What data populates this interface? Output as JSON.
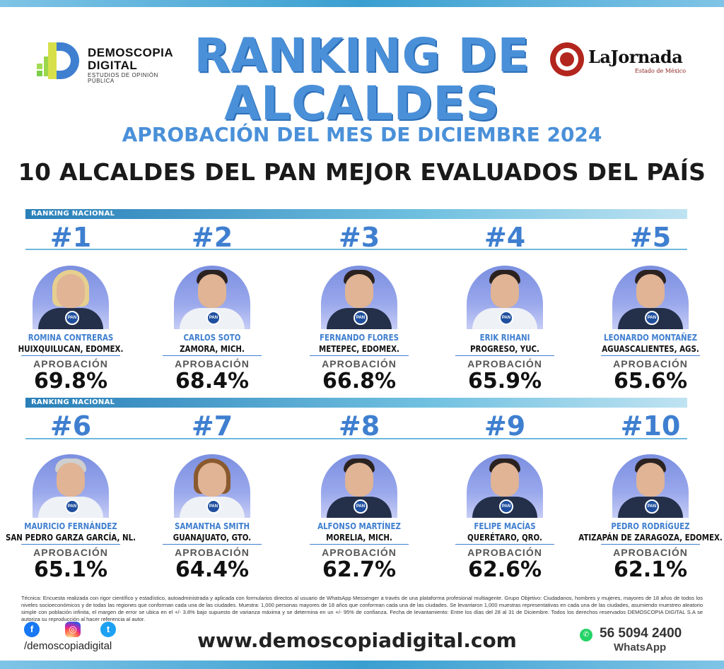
{
  "header": {
    "brand_left": {
      "line1": "DEMOSCOPIA",
      "line2": "DIGITAL",
      "line3": "ESTUDIOS DE OPINIÓN PÚBLICA"
    },
    "brand_right": {
      "name": "LaJornada",
      "sub": "Estado de México"
    },
    "title_line1": "RANKING DE",
    "title_line2": "ALCALDES",
    "subtitle": "APROBACIÓN DEL MES DE DICIEMBRE 2024",
    "headline": "10 ALCALDES DEL PAN MEJOR EVALUADOS DEL PAÍS"
  },
  "section_label": "RANKING NACIONAL",
  "approval_label": "APROBACIÓN",
  "party_badge": "PAN",
  "mayors": [
    {
      "rank": "#1",
      "name": "ROMINA CONTRERAS",
      "city": "HUIXQUILUCAN, EDOMEX.",
      "approval": "69.8%"
    },
    {
      "rank": "#2",
      "name": "CARLOS SOTO",
      "city": "ZAMORA, MICH.",
      "approval": "68.4%"
    },
    {
      "rank": "#3",
      "name": "FERNANDO FLORES",
      "city": "METEPEC, EDOMEX.",
      "approval": "66.8%"
    },
    {
      "rank": "#4",
      "name": "ERIK RIHANI",
      "city": "PROGRESO, YUC.",
      "approval": "65.9%"
    },
    {
      "rank": "#5",
      "name": "LEONARDO MONTAÑEZ",
      "city": "AGUASCALIENTES, AGS.",
      "approval": "65.6%"
    },
    {
      "rank": "#6",
      "name": "MAURICIO FERNÁNDEZ",
      "city": "SAN PEDRO GARZA GARCÍA, NL.",
      "approval": "65.1%"
    },
    {
      "rank": "#7",
      "name": "SAMANTHA SMITH",
      "city": "GUANAJUATO, GTO.",
      "approval": "64.4%"
    },
    {
      "rank": "#8",
      "name": "ALFONSO MARTÍNEZ",
      "city": "MORELIA, MICH.",
      "approval": "62.7%"
    },
    {
      "rank": "#9",
      "name": "FELIPE MACÍAS",
      "city": "QUERÉTARO, QRO.",
      "approval": "62.6%"
    },
    {
      "rank": "#10",
      "name": "PEDRO RODRÍGUEZ",
      "city": "ATIZAPÁN DE ZARAGOZA, EDOMEX.",
      "approval": "62.1%"
    }
  ],
  "footer": {
    "technical": "Técnica: Encuesta realizada con rigor científico y estadístico, autoadministrada y aplicada con formularios directos al usuario de WhatsApp Messenger a través de una plataforma profesional multiagente. Grupo Objetivo: Ciudadanos, hombres y mujeres, mayores de 18 años de todos los niveles socioeconómicos y de todas las regiones que conforman cada una de las ciudades. Muestra: 1,000 personas mayores de 18 años que conforman cada una de las ciudades. Se levantaron 1,000 muestras representativas en cada una de las ciudades, asumiendo muestreo aleatorio simple con población infinita, el margen de error se ubica en el +/- 3.8% bajo supuesto de varianza máxima y se determina en un +/- 95% de confianza. Fecha de levantamiento: Entre los días del 28 al 31 de Diciembre. Todos los derechos reservados DEMOSCOPIA DIGITAL S.A se autoriza su reproducción al hacer referencia al autor.",
    "social_handle": "/demoscopiadigital",
    "website": "www.demoscopiadigital.com",
    "phone": "56 5094 2400",
    "whatsapp_label": "WhatsApp"
  },
  "icons": {
    "facebook": "facebook-icon",
    "instagram": "instagram-icon",
    "twitter": "twitter-icon",
    "whatsapp": "whatsapp-icon"
  },
  "colors": {
    "accent": "#4a90d9",
    "rank_number": "#3f7fd0"
  }
}
